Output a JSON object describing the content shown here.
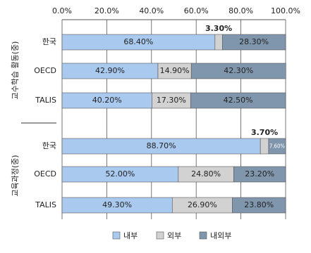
{
  "chart_data": {
    "type": "bar",
    "orientation": "horizontal",
    "stacked": true,
    "groups": [
      {
        "label": "교수학습 활동(중)",
        "categories": [
          "한국",
          "OECD",
          "TALIS"
        ]
      },
      {
        "label": "교육과정(중)",
        "categories": [
          "한국",
          "OECD",
          "TALIS"
        ]
      }
    ],
    "series": [
      {
        "name": "내부",
        "color": "#a9c9ee",
        "values": [
          [
            68.4,
            42.9,
            40.2
          ],
          [
            88.7,
            52.0,
            49.3
          ]
        ],
        "value_labels": [
          [
            "68.40%",
            "42.90%",
            "40.20%"
          ],
          [
            "88.70%",
            "52.00%",
            "49.30%"
          ]
        ]
      },
      {
        "name": "외부",
        "color": "#d2d2d2",
        "values": [
          [
            3.3,
            14.9,
            17.3
          ],
          [
            3.7,
            24.8,
            26.9
          ]
        ],
        "value_labels": [
          [
            "3.30%",
            "14.90%",
            "17.30%"
          ],
          [
            "3.70%",
            "24.80%",
            "26.90%"
          ]
        ]
      },
      {
        "name": "내외부",
        "color": "#8096ac",
        "values": [
          [
            28.3,
            42.3,
            42.5
          ],
          [
            7.6,
            23.2,
            23.8
          ]
        ],
        "value_labels": [
          [
            "28.30%",
            "42.30%",
            "42.50%"
          ],
          [
            "7.60%",
            "23.20%",
            "23.80%"
          ]
        ]
      }
    ],
    "xlim": [
      0,
      100
    ],
    "xticks": [
      {
        "value": 0,
        "label": "0.0%"
      },
      {
        "value": 20,
        "label": "20.0%"
      },
      {
        "value": 40,
        "label": "40.0%"
      },
      {
        "value": 60,
        "label": "60.0%"
      },
      {
        "value": 80,
        "label": "80.0%"
      },
      {
        "value": 100,
        "label": "100.0%"
      }
    ],
    "grid": true,
    "legend": "bottom"
  }
}
